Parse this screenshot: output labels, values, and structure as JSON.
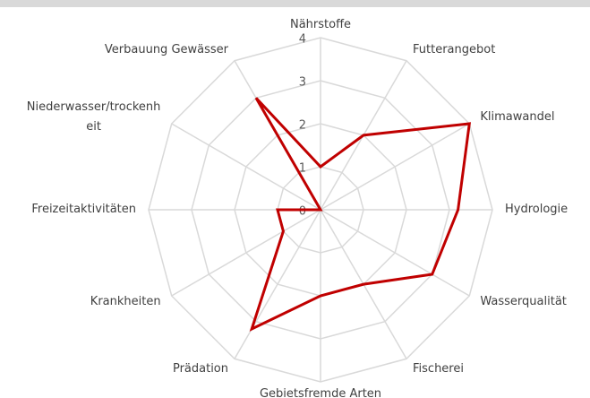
{
  "chart_data": {
    "type": "radar",
    "categories": [
      "Nährstoffe",
      "Futterangebot",
      "Klimawandel",
      "Hydrologie",
      "Wasserqualität",
      "Fischerei",
      "Gebietsfremde Arten",
      "Prädation",
      "Krankheiten",
      "Freizeitaktivitäten",
      "Niederwasser/trockenheit",
      "Verbauung Gewässer"
    ],
    "values": [
      1,
      2,
      4,
      3.2,
      3,
      2,
      2,
      3.2,
      1,
      1,
      0,
      3
    ],
    "color": "#c00000",
    "ylim": [
      0,
      4
    ],
    "yticks": [
      0,
      1,
      2,
      3,
      4
    ],
    "grid": true
  }
}
